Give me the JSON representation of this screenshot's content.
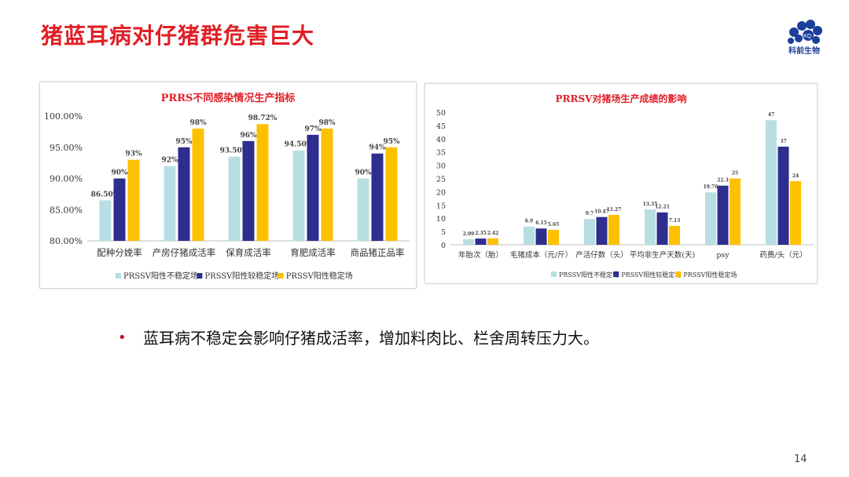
{
  "slide": {
    "title": "猪蓝耳病对仔猪群危害巨大",
    "logo_label": "科前生物",
    "logo_mark": "KQ",
    "bullet_text": "蓝耳病不稳定会影响仔猪成活率，增加料肉比、栏舍周转压力大。",
    "page_number": "14"
  },
  "colors": {
    "title": "#e01f26",
    "series1": "#b7dfe3",
    "series2": "#2e2e8f",
    "series3": "#ffc000"
  },
  "chart_data": [
    {
      "type": "bar",
      "title": "PRRS不同感染情况生产指标",
      "categories": [
        "配种分娩率",
        "产房仔猪成活率",
        "保育成活率",
        "育肥成活率",
        "商品猪正品率"
      ],
      "series": [
        {
          "name": "PRSSV阳性不稳定场",
          "values": [
            86.5,
            92,
            93.5,
            94.5,
            90
          ],
          "labels": [
            "86.50%",
            "92%",
            "93.50%",
            "94.50%",
            "90%"
          ]
        },
        {
          "name": "PRSSV阳性较稳定场",
          "values": [
            90,
            95,
            96,
            97,
            94
          ],
          "labels": [
            "90%",
            "95%",
            "96%",
            "97%",
            "94%"
          ]
        },
        {
          "name": "PRSSV阳性稳定场",
          "values": [
            93,
            98,
            98.72,
            98,
            95
          ],
          "labels": [
            "93%",
            "98%",
            "98.72%",
            "98%",
            "95%"
          ]
        }
      ],
      "ylim": [
        80,
        100
      ],
      "yticks": [
        80,
        85,
        90,
        95,
        100
      ],
      "ytick_labels": [
        "80.00%",
        "85.00%",
        "90.00%",
        "95.00%",
        "100.00%"
      ],
      "grid": false,
      "legend": "bottom"
    },
    {
      "type": "bar",
      "title": "PRRSV对猪场生产成绩的影响",
      "categories": [
        "年胎次（胎）",
        "毛猪成本（元/斤）",
        "产活仔数（头）",
        "平均非生产天数(天)",
        "psy",
        "药费/头（元）"
      ],
      "series": [
        {
          "name": "PRSSV阳性不稳定场",
          "values": [
            2.09,
            6.9,
            9.7,
            13.35,
            19.76,
            47
          ],
          "labels": [
            "2.09",
            "6.9",
            "9.7",
            "13.35",
            "19.76",
            "47"
          ]
        },
        {
          "name": "PRSSV阳性较稳定场",
          "values": [
            2.35,
            6.15,
            10.47,
            12.21,
            22.3,
            37
          ],
          "labels": [
            "2.35",
            "6.15",
            "10.47",
            "12.21",
            "22.3",
            "37"
          ]
        },
        {
          "name": "PRSSV阳性稳定场",
          "values": [
            2.42,
            5.65,
            11.27,
            7.13,
            25,
            24
          ],
          "labels": [
            "2.42",
            "5.65",
            "11.27",
            "7.13",
            "25",
            "24"
          ]
        }
      ],
      "ylim": [
        0,
        50
      ],
      "yticks": [
        0,
        5,
        10,
        15,
        20,
        25,
        30,
        35,
        40,
        45,
        50
      ],
      "ytick_labels": [
        "0",
        "5",
        "10",
        "15",
        "20",
        "25",
        "30",
        "35",
        "40",
        "45",
        "50"
      ],
      "grid": false,
      "legend": "bottom"
    }
  ]
}
